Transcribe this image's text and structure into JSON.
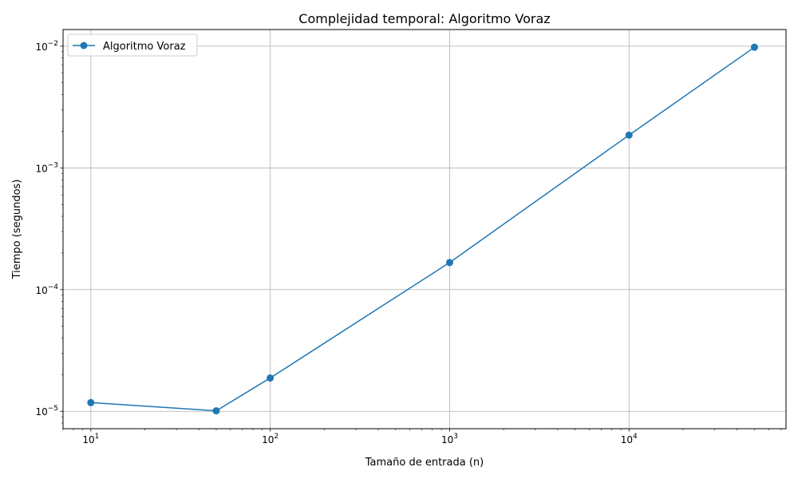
{
  "chart_data": {
    "type": "line",
    "title": "Complejidad temporal: Algoritmo Voraz",
    "xlabel": "Tamaño de entrada (n)",
    "ylabel": "Tiempo (segundos)",
    "xscale": "log",
    "yscale": "log",
    "xlim": [
      7,
      75000
    ],
    "ylim": [
      7.2e-06,
      0.0137
    ],
    "x_ticks": [
      10,
      100,
      1000,
      10000
    ],
    "y_ticks": [
      1e-05,
      0.0001,
      0.001,
      0.01
    ],
    "grid": true,
    "legend_position": "upper-left",
    "series": [
      {
        "name": "Algoritmo Voraz",
        "color": "#1f77b4",
        "marker": "circle",
        "x": [
          10,
          50,
          100,
          1000,
          10000,
          50000
        ],
        "y": [
          1.18e-05,
          1.01e-05,
          1.88e-05,
          0.000167,
          0.00186,
          0.0098
        ]
      }
    ]
  }
}
